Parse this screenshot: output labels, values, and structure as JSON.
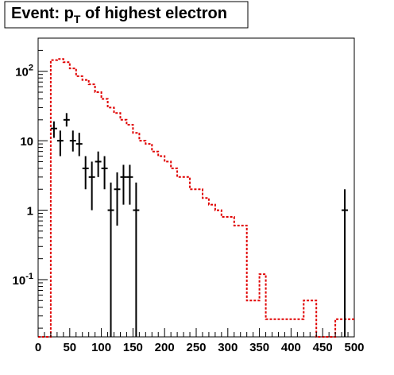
{
  "chart_data": {
    "type": "histogram",
    "title": {
      "main": "Event: p",
      "subscript": "T",
      "rest": " of highest electron"
    },
    "xlabel": "",
    "ylabel": "",
    "xlim": [
      0,
      500
    ],
    "ylim": [
      0.015,
      300
    ],
    "yscale": "log",
    "grid": false,
    "legend": "none",
    "x_ticks": [
      0,
      50,
      100,
      150,
      200,
      250,
      300,
      350,
      400,
      450,
      500
    ],
    "y_ticks": [
      {
        "value": 0.1,
        "base": "10",
        "exp": "-1"
      },
      {
        "value": 1,
        "base": "1",
        "exp": ""
      },
      {
        "value": 10,
        "base": "10",
        "exp": ""
      },
      {
        "value": 100,
        "base": "10",
        "exp": "2"
      }
    ],
    "series": [
      {
        "kind": "step",
        "color": "#e00000",
        "style": "dotted",
        "bin_edges": [
          0,
          10,
          20,
          30,
          40,
          50,
          60,
          70,
          80,
          90,
          100,
          110,
          120,
          130,
          140,
          150,
          160,
          170,
          180,
          190,
          200,
          210,
          220,
          230,
          240,
          250,
          260,
          270,
          280,
          290,
          300,
          310,
          320,
          330,
          340,
          350,
          360,
          370,
          380,
          390,
          400,
          410,
          420,
          430,
          440,
          450,
          460,
          470,
          480,
          490,
          500
        ],
        "values": [
          0.015,
          0.015,
          145,
          150,
          135,
          110,
          85,
          75,
          65,
          50,
          40,
          30,
          25,
          20,
          17,
          13,
          10,
          9,
          7,
          6,
          5,
          4,
          3,
          3,
          2,
          2,
          1.5,
          1.2,
          1,
          0.8,
          0.8,
          0.6,
          0.6,
          0.05,
          0.05,
          0.12,
          0.027,
          0.027,
          0.027,
          0.027,
          0.027,
          0.027,
          0.05,
          0.05,
          0.015,
          0.015,
          0.015,
          0.027,
          0.027,
          0.027
        ]
      },
      {
        "kind": "points",
        "color": "#000000",
        "points": [
          {
            "x": 25,
            "y": 15,
            "ylo": 11,
            "yhi": 19
          },
          {
            "x": 35,
            "y": 10,
            "ylo": 6,
            "yhi": 14
          },
          {
            "x": 45,
            "y": 20,
            "ylo": 16,
            "yhi": 25
          },
          {
            "x": 55,
            "y": 10,
            "ylo": 7,
            "yhi": 14
          },
          {
            "x": 65,
            "y": 9,
            "ylo": 6,
            "yhi": 13
          },
          {
            "x": 75,
            "y": 4,
            "ylo": 2,
            "yhi": 6
          },
          {
            "x": 85,
            "y": 3,
            "ylo": 1,
            "yhi": 5
          },
          {
            "x": 95,
            "y": 5,
            "ylo": 3,
            "yhi": 7
          },
          {
            "x": 105,
            "y": 4,
            "ylo": 2,
            "yhi": 6
          },
          {
            "x": 115,
            "y": 1,
            "ylo": 0.015,
            "yhi": 2.5
          },
          {
            "x": 125,
            "y": 2,
            "ylo": 0.6,
            "yhi": 3.5
          },
          {
            "x": 135,
            "y": 3,
            "ylo": 1.2,
            "yhi": 4.5
          },
          {
            "x": 145,
            "y": 3,
            "ylo": 1.2,
            "yhi": 4.5
          },
          {
            "x": 155,
            "y": 1,
            "ylo": 0.015,
            "yhi": 2.5
          },
          {
            "x": 485,
            "y": 1,
            "ylo": 0.015,
            "yhi": 2
          }
        ]
      }
    ]
  }
}
